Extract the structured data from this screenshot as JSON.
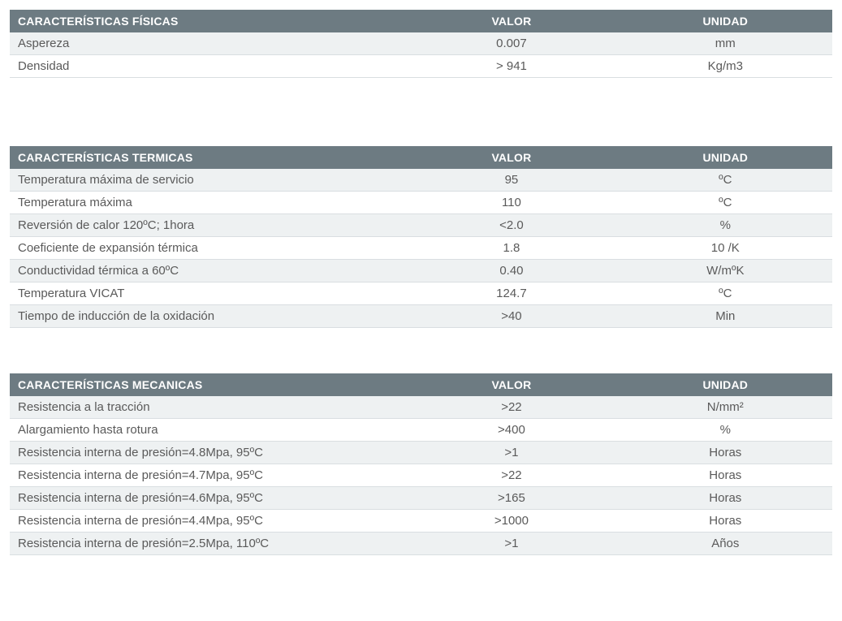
{
  "colors": {
    "header_bg": "#6d7b82",
    "header_text": "#ffffff",
    "row_even_bg": "#eef1f2",
    "row_odd_bg": "#ffffff",
    "text": "#5a5a5a",
    "border": "#d9dee1"
  },
  "tables": [
    {
      "headers": {
        "label": "CARACTERÍSTICAS FÍSICAS",
        "value": "VALOR",
        "unit": "UNIDAD"
      },
      "rows": [
        {
          "label": "Aspereza",
          "value": "0.007",
          "unit": "mm"
        },
        {
          "label": "Densidad",
          "value": "> 941",
          "unit": "Kg/m3"
        }
      ]
    },
    {
      "headers": {
        "label": "CARACTERÍSTICAS TERMICAS",
        "value": "VALOR",
        "unit": "UNIDAD"
      },
      "rows": [
        {
          "label": "Temperatura máxima de servicio",
          "value": "95",
          "unit": "ºC"
        },
        {
          "label": "Temperatura máxima",
          "value": "110",
          "unit": "ºC"
        },
        {
          "label": "Reversión de calor 120ºC; 1hora",
          "value": "<2.0",
          "unit": "%"
        },
        {
          "label": "Coeficiente de expansión térmica",
          "value": "1.8",
          "unit": "10  /K"
        },
        {
          "label": "Conductividad térmica a 60ºC",
          "value": "0.40",
          "unit": "W/mºK"
        },
        {
          "label": "Temperatura VICAT",
          "value": "124.7",
          "unit": "ºC"
        },
        {
          "label": "Tiempo de inducción de la oxidación",
          "value": ">40",
          "unit": "Min"
        }
      ]
    },
    {
      "headers": {
        "label": "CARACTERÍSTICAS MECANICAS",
        "value": "VALOR",
        "unit": "UNIDAD"
      },
      "rows": [
        {
          "label": "Resistencia a la tracción",
          "value": ">22",
          "unit": "N/mm²"
        },
        {
          "label": "Alargamiento hasta rotura",
          "value": ">400",
          "unit": "%"
        },
        {
          "label": "Resistencia interna de presión=4.8Mpa, 95ºC",
          "value": ">1",
          "unit": "Horas"
        },
        {
          "label": "Resistencia interna de presión=4.7Mpa, 95ºC",
          "value": ">22",
          "unit": "Horas"
        },
        {
          "label": "Resistencia interna de presión=4.6Mpa, 95ºC",
          "value": ">165",
          "unit": "Horas"
        },
        {
          "label": "Resistencia interna de presión=4.4Mpa, 95ºC",
          "value": ">1000",
          "unit": "Horas"
        },
        {
          "label": "Resistencia interna de presión=2.5Mpa, 110ºC",
          "value": ">1",
          "unit": "Años"
        }
      ]
    }
  ]
}
